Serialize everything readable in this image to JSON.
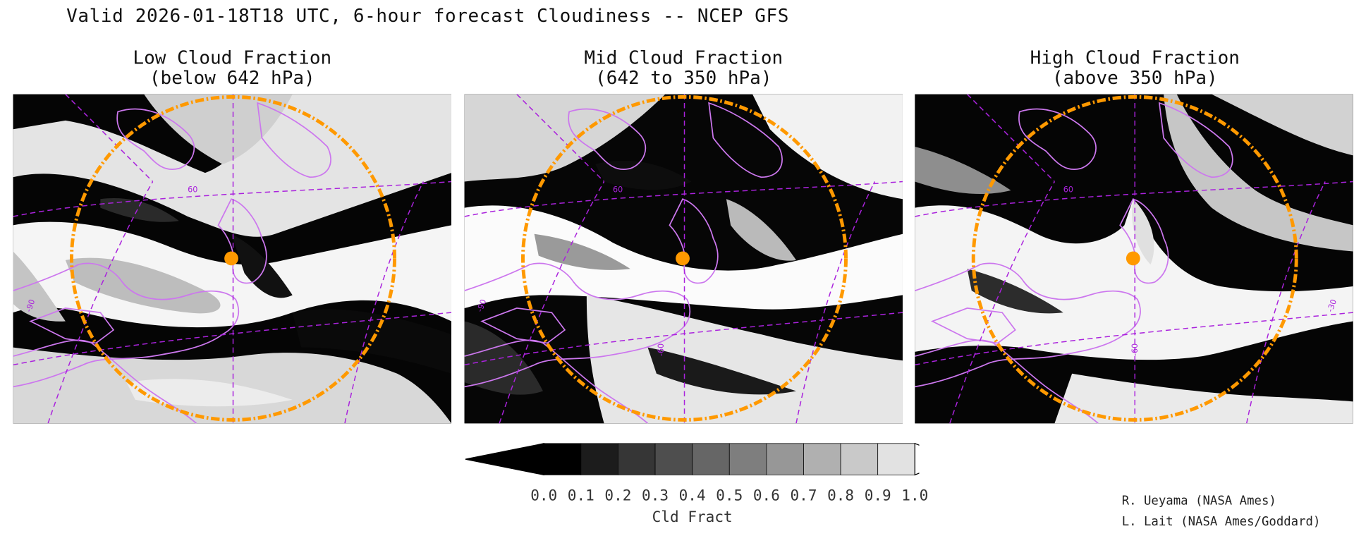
{
  "title": "Valid 2026-01-18T18 UTC, 6-hour forecast Cloudiness -- NCEP GFS",
  "panels": [
    {
      "title_line1": "Low Cloud Fraction",
      "title_line2": "(below 642 hPa)",
      "lat_label": "60",
      "lon_label_w": "-90",
      "lon_label_c": "-60",
      "lon_label_e": "-30"
    },
    {
      "title_line1": "Mid Cloud Fraction",
      "title_line2": "(642 to 350 hPa)",
      "lat_label": "60",
      "lon_label_w": "-90",
      "lon_label_c": "-60",
      "lon_label_e": "-30"
    },
    {
      "title_line1": "High Cloud Fraction",
      "title_line2": "(above 350 hPa)",
      "lat_label": "60",
      "lon_label_w": "-90",
      "lon_label_c": "-60",
      "lon_label_e": "-30"
    }
  ],
  "colorbar": {
    "ticks": [
      "0.0",
      "0.1",
      "0.2",
      "0.3",
      "0.4",
      "0.5",
      "0.6",
      "0.7",
      "0.8",
      "0.9",
      "1.0"
    ],
    "label": "Cld Fract",
    "colors": [
      "#000000",
      "#1c1c1c",
      "#363636",
      "#4e4e4e",
      "#666666",
      "#7e7e7e",
      "#979797",
      "#b0b0b0",
      "#c9c9c9",
      "#e2e2e2"
    ],
    "under_color": "#000000",
    "over_color": "#ffffff"
  },
  "credits": [
    "R. Ueyama (NASA Ames)",
    "L. Lait (NASA Ames/Goddard)"
  ],
  "style": {
    "coastline_color": "#cc77ee",
    "grid_color": "#aa22dd",
    "range_ring_color": "#ff9900",
    "marker_color": "#ff9900"
  }
}
